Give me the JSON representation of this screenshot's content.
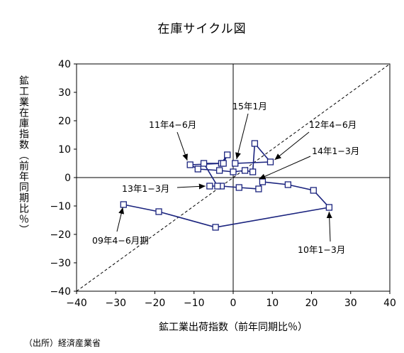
{
  "chart_data": {
    "type": "line",
    "title": "在庫サイクル図",
    "xlabel": "鉱工業出荷指数（前年同期比％）",
    "ylabel": "鉱工業在庫指数（前年同期比％）",
    "xlim": [
      -40,
      40
    ],
    "ylim": [
      -40,
      40
    ],
    "xticks": [
      -40,
      -30,
      -20,
      -10,
      0,
      10,
      20,
      30,
      40
    ],
    "yticks": [
      -40,
      -30,
      -20,
      -10,
      0,
      10,
      20,
      30,
      40
    ],
    "xtick_labels": [
      "−40",
      "−30",
      "−20",
      "−10",
      "0",
      "10",
      "20",
      "30",
      "40"
    ],
    "ytick_labels": [
      "−40",
      "−30",
      "−20",
      "−10",
      "0",
      "10",
      "20",
      "30",
      "40"
    ],
    "grid": false,
    "reference_line": "45-degree dashed",
    "series": [
      {
        "color": "#1a237e",
        "marker": "square",
        "points": [
          [
            -28,
            -9.5
          ],
          [
            -19,
            -12
          ],
          [
            -4.5,
            -17.5
          ],
          [
            24.5,
            -10.5
          ],
          [
            20.5,
            -4.5
          ],
          [
            14,
            -2.5
          ],
          [
            7.5,
            -1.5
          ],
          [
            6.5,
            -4
          ],
          [
            1.5,
            -3.5
          ],
          [
            -3,
            -3
          ],
          [
            -6,
            -3
          ],
          [
            -4,
            -3
          ],
          [
            -7.5,
            5
          ],
          [
            -3,
            5
          ],
          [
            -1.5,
            8
          ],
          [
            -2.5,
            5
          ],
          [
            -11,
            4.5
          ],
          [
            -9,
            3
          ],
          [
            -3.5,
            2.5
          ],
          [
            0,
            2
          ],
          [
            3,
            2.5
          ],
          [
            5,
            2
          ],
          [
            5.5,
            12
          ],
          [
            9.5,
            5.5
          ],
          [
            0.5,
            5
          ]
        ]
      }
    ],
    "annotations": [
      {
        "text": "09年4−6月期",
        "point": [
          -28,
          -9.5
        ]
      },
      {
        "text": "10年1−3月",
        "point": [
          24.5,
          -10.5
        ]
      },
      {
        "text": "11年4−6月",
        "point": [
          -11,
          4.5
        ]
      },
      {
        "text": "13年1−3月",
        "point": [
          -6,
          -3
        ]
      },
      {
        "text": "15年1月",
        "point": [
          0.5,
          5
        ]
      },
      {
        "text": "12年4−6月",
        "point": [
          9.5,
          5.5
        ]
      },
      {
        "text": "14年1−3月",
        "point": [
          5.5,
          -1
        ]
      }
    ]
  },
  "source_note": "（出所）経済産業省"
}
